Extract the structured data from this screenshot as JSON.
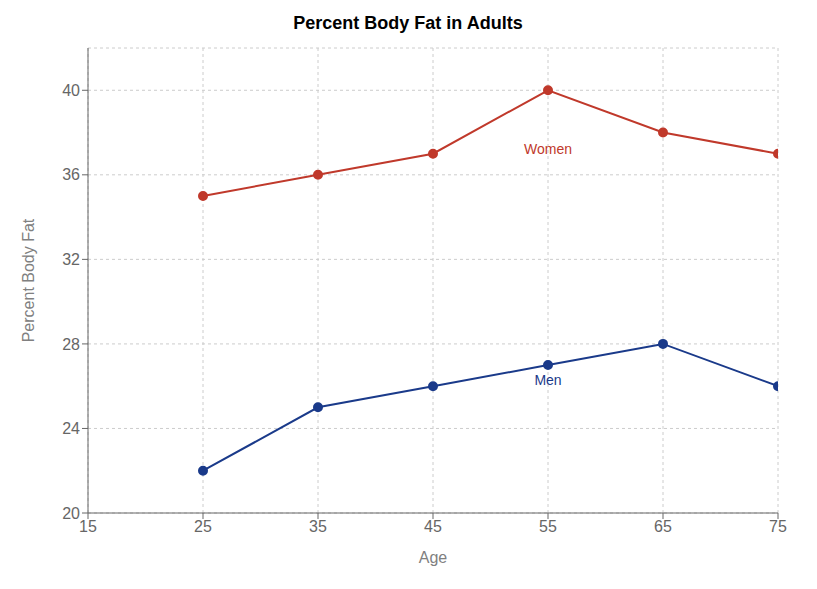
{
  "chart_data": {
    "type": "line",
    "title": "Percent Body Fat in Adults",
    "x_label": "Age",
    "y_label": "Percent Body Fat",
    "x": [
      25,
      35,
      45,
      55,
      65,
      75
    ],
    "series": [
      {
        "name": "Women",
        "color": "#c0392b",
        "marker": "circle",
        "values": [
          35,
          36,
          37,
          40,
          38,
          37
        ]
      },
      {
        "name": "Men",
        "color": "#1a3a8a",
        "marker": "circle",
        "values": [
          22,
          25,
          26,
          27,
          28,
          26
        ]
      }
    ],
    "xlim": [
      15,
      75
    ],
    "ylim": [
      20,
      42
    ],
    "xticks": [
      15,
      25,
      35,
      45,
      55,
      65,
      75
    ],
    "yticks": [
      20,
      24,
      28,
      32,
      36,
      40
    ],
    "grid": true,
    "annotations": [
      {
        "text": "Women",
        "x": 55,
        "y": 37.2,
        "color": "#c0392b"
      },
      {
        "text": "Men",
        "x": 55,
        "y": 26.3,
        "color": "#1a3a8a"
      }
    ]
  }
}
